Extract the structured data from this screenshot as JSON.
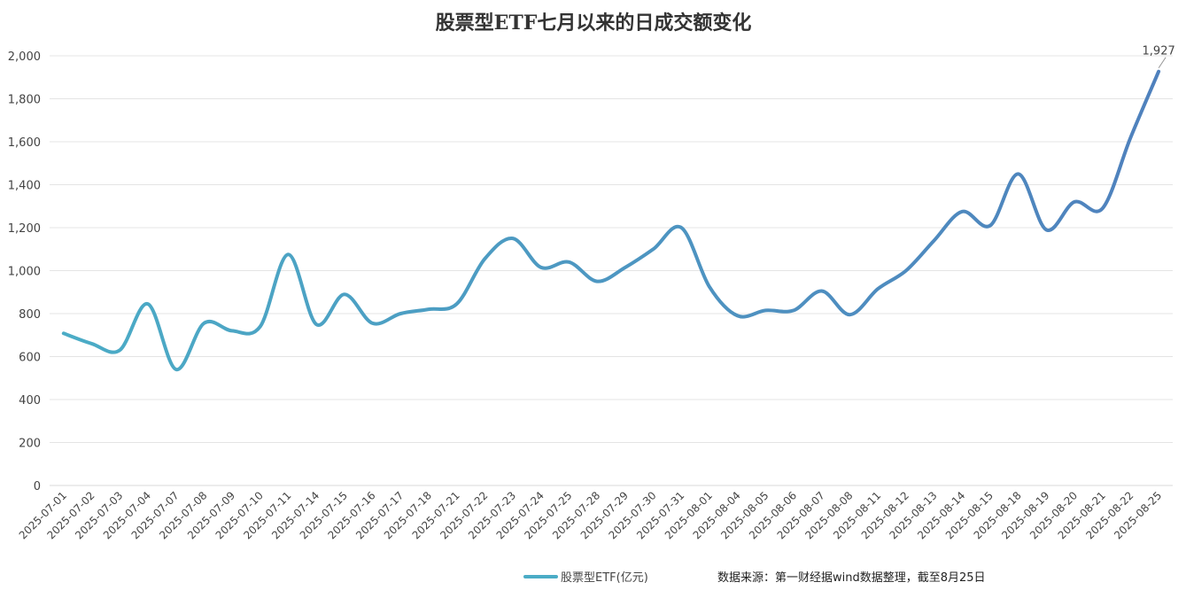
{
  "chart_data": {
    "type": "line",
    "title": "股票型ETF七月以来的日成交额变化",
    "xlabel": "",
    "ylabel": "",
    "ylim": [
      0,
      2000
    ],
    "yticks": [
      "0",
      "200",
      "400",
      "600",
      "800",
      "1,000",
      "1,200",
      "1,400",
      "1,600",
      "1,800",
      "2,000"
    ],
    "grid": true,
    "legend_position": "bottom",
    "categories": [
      "2025-07-01",
      "2025-07-02",
      "2025-07-03",
      "2025-07-04",
      "2025-07-07",
      "2025-07-08",
      "2025-07-09",
      "2025-07-10",
      "2025-07-11",
      "2025-07-14",
      "2025-07-15",
      "2025-07-16",
      "2025-07-17",
      "2025-07-18",
      "2025-07-21",
      "2025-07-22",
      "2025-07-23",
      "2025-07-24",
      "2025-07-25",
      "2025-07-28",
      "2025-07-29",
      "2025-07-30",
      "2025-07-31",
      "2025-08-01",
      "2025-08-04",
      "2025-08-05",
      "2025-08-06",
      "2025-08-07",
      "2025-08-08",
      "2025-08-11",
      "2025-08-12",
      "2025-08-13",
      "2025-08-14",
      "2025-08-15",
      "2025-08-18",
      "2025-08-19",
      "2025-08-20",
      "2025-08-21",
      "2025-08-22",
      "2025-08-25"
    ],
    "series": [
      {
        "name": "股票型ETF(亿元)",
        "values": [
          708,
          660,
          630,
          845,
          540,
          755,
          720,
          740,
          1075,
          750,
          890,
          755,
          800,
          820,
          845,
          1055,
          1150,
          1015,
          1040,
          950,
          1015,
          1100,
          1200,
          925,
          790,
          815,
          815,
          905,
          795,
          915,
          1000,
          1140,
          1275,
          1210,
          1450,
          1190,
          1320,
          1290,
          1620,
          1927
        ],
        "color_start": "#4bacc6",
        "color_end": "#4f81bd"
      }
    ],
    "annotations": [
      {
        "category": "2025-08-25",
        "text": "1,927"
      }
    ],
    "source": "数据来源：第一财经据wind数据整理，截至8月25日"
  }
}
